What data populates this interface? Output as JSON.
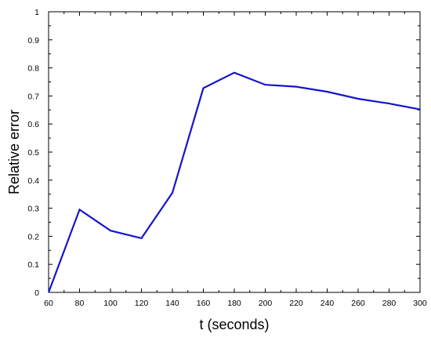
{
  "chart_data": {
    "type": "line",
    "title": "",
    "xlabel": "t (seconds)",
    "ylabel": "Relative error",
    "xlim": [
      60,
      300
    ],
    "ylim": [
      0,
      1
    ],
    "x_ticks": [
      60,
      80,
      100,
      120,
      140,
      160,
      180,
      200,
      220,
      240,
      260,
      280,
      300
    ],
    "y_ticks": [
      0,
      0.1,
      0.2,
      0.3,
      0.4,
      0.5,
      0.6,
      0.7,
      0.8,
      0.9,
      1
    ],
    "grid": false,
    "legend": "none",
    "series": [
      {
        "color": "#1414cc",
        "x": [
          60,
          80,
          100,
          120,
          140,
          160,
          180,
          200,
          220,
          240,
          260,
          280,
          300
        ],
        "y": [
          0.0,
          0.295,
          0.22,
          0.193,
          0.355,
          0.728,
          0.783,
          0.74,
          0.733,
          0.715,
          0.69,
          0.673,
          0.652
        ]
      }
    ]
  }
}
